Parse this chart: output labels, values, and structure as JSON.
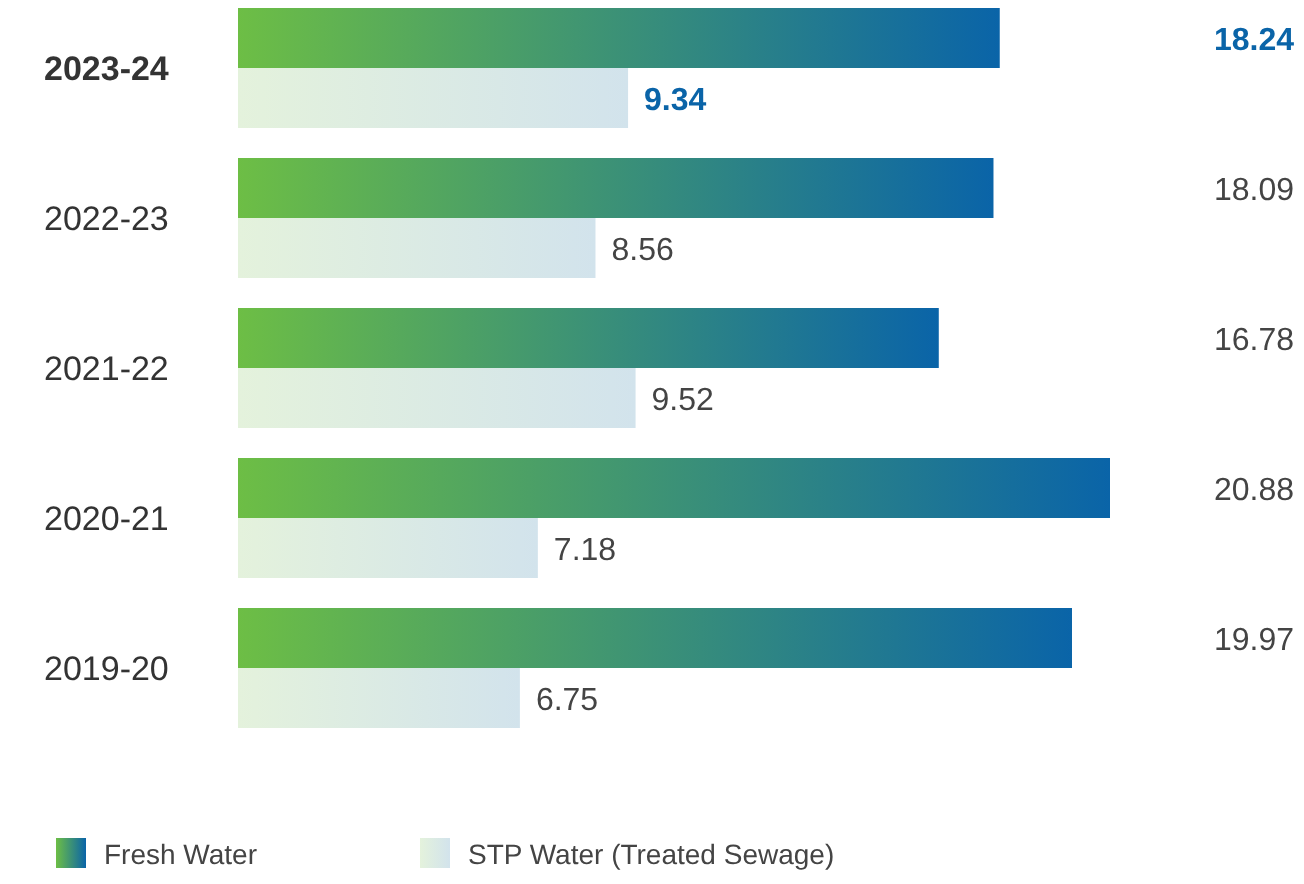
{
  "chart_data": {
    "type": "bar",
    "orientation": "horizontal",
    "categories": [
      "2023-24",
      "2022-23",
      "2021-22",
      "2020-21",
      "2019-20"
    ],
    "series": [
      {
        "name": "Fresh Water",
        "color": "#0a64a8",
        "values": [
          18.24,
          18.09,
          16.78,
          20.88,
          19.97
        ]
      },
      {
        "name": "STP Water (Treated Sewage)",
        "color": "#d2e3ec",
        "values": [
          9.34,
          8.56,
          9.52,
          7.18,
          6.75
        ]
      }
    ],
    "xlim": [
      0,
      20.88
    ],
    "data_labels": true,
    "legend": "bottom",
    "tick_labels": "y"
  }
}
